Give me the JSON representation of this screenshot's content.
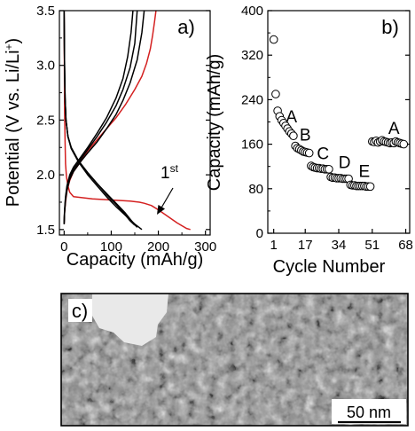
{
  "chart_data": [
    {
      "panel": "a)",
      "type": "line",
      "xlabel": "Capacity (mAh/g)",
      "ylabel": "Potential (V vs. Li/Li+)",
      "ylabel_parts": [
        "Potential (V vs. Li/Li",
        "+",
        ")"
      ],
      "xlim": [
        -10,
        310
      ],
      "ylim": [
        1.45,
        3.5
      ],
      "x_ticks": [
        "0",
        "100",
        "200",
        "300"
      ],
      "y_ticks": [
        "1.5",
        "2.0",
        "2.5",
        "3.0",
        "3.5"
      ],
      "annotation": {
        "main": "1",
        "sup": "st"
      },
      "colors": {
        "first_cycle": "#d42020",
        "other_cycles": "#000000"
      },
      "series": [
        {
          "color": "#d42020",
          "x": [
            0,
            0.5,
            1,
            2,
            3,
            5,
            8,
            12,
            20,
            40,
            60,
            80,
            100,
            120,
            140,
            160,
            170,
            185,
            200,
            220,
            240,
            260,
            268
          ],
          "y": [
            3.5,
            3.0,
            2.6,
            2.3,
            2.1,
            1.98,
            1.9,
            1.84,
            1.8,
            1.79,
            1.78,
            1.775,
            1.77,
            1.765,
            1.76,
            1.75,
            1.74,
            1.72,
            1.68,
            1.62,
            1.56,
            1.51,
            1.5
          ]
        },
        {
          "color": "#d42020",
          "x": [
            0,
            1,
            3,
            6,
            12,
            20,
            35,
            50,
            70,
            90,
            110,
            130,
            150,
            165,
            175,
            183,
            188,
            192,
            195
          ],
          "y": [
            1.55,
            1.65,
            1.75,
            1.85,
            1.95,
            2.03,
            2.12,
            2.22,
            2.32,
            2.42,
            2.52,
            2.64,
            2.78,
            2.9,
            3.02,
            3.15,
            3.28,
            3.4,
            3.5
          ]
        },
        {
          "color": "#000000",
          "x": [
            0,
            1,
            2,
            4,
            8,
            15,
            30,
            50,
            70,
            90,
            110,
            130,
            145,
            155
          ],
          "y": [
            3.5,
            3.0,
            2.7,
            2.5,
            2.35,
            2.25,
            2.13,
            2.02,
            1.92,
            1.83,
            1.74,
            1.65,
            1.57,
            1.52
          ]
        },
        {
          "color": "#000000",
          "x": [
            0,
            1,
            2,
            4,
            8,
            15,
            30,
            50,
            70,
            90,
            110,
            130,
            150,
            165
          ],
          "y": [
            3.5,
            3.0,
            2.7,
            2.5,
            2.35,
            2.24,
            2.12,
            2.0,
            1.9,
            1.8,
            1.71,
            1.63,
            1.55,
            1.5
          ]
        },
        {
          "color": "#000000",
          "x": [
            0,
            1,
            2,
            4,
            8,
            15,
            30,
            50,
            70,
            90,
            110,
            125,
            140,
            150
          ],
          "y": [
            3.5,
            3.0,
            2.7,
            2.5,
            2.35,
            2.25,
            2.13,
            2.02,
            1.92,
            1.82,
            1.73,
            1.66,
            1.58,
            1.54
          ]
        },
        {
          "color": "#000000",
          "x": [
            0,
            1,
            3,
            6,
            12,
            20,
            35,
            50,
            70,
            90,
            110,
            125,
            135,
            142,
            146
          ],
          "y": [
            1.55,
            1.68,
            1.8,
            1.9,
            2.0,
            2.07,
            2.16,
            2.25,
            2.38,
            2.52,
            2.7,
            2.88,
            3.08,
            3.3,
            3.5
          ]
        },
        {
          "color": "#000000",
          "x": [
            0,
            1,
            3,
            6,
            12,
            20,
            35,
            50,
            70,
            90,
            110,
            125,
            140,
            150,
            155
          ],
          "y": [
            1.55,
            1.66,
            1.78,
            1.88,
            1.98,
            2.05,
            2.14,
            2.23,
            2.35,
            2.48,
            2.63,
            2.78,
            2.98,
            3.2,
            3.5
          ]
        },
        {
          "color": "#000000",
          "x": [
            0,
            1,
            3,
            6,
            12,
            20,
            35,
            50,
            70,
            90,
            110,
            125,
            140,
            155,
            165,
            170
          ],
          "y": [
            1.55,
            1.65,
            1.77,
            1.86,
            1.96,
            2.03,
            2.12,
            2.2,
            2.3,
            2.42,
            2.55,
            2.68,
            2.84,
            3.05,
            3.3,
            3.5
          ]
        }
      ]
    },
    {
      "panel": "b)",
      "type": "scatter",
      "xlabel": "Cycle Number",
      "ylabel": "Capacity (mAh/g)",
      "xlim": [
        -2,
        70
      ],
      "ylim": [
        0,
        400
      ],
      "x_ticks": [
        1,
        17,
        34,
        51,
        68
      ],
      "y_ticks": [
        0,
        80,
        160,
        240,
        320,
        400
      ],
      "x": [
        1,
        2,
        3,
        4,
        5,
        6,
        7,
        8,
        9,
        10,
        11,
        12,
        13,
        14,
        15,
        16,
        17,
        18,
        19,
        20,
        21,
        22,
        23,
        24,
        25,
        26,
        27,
        28,
        29,
        30,
        31,
        32,
        33,
        34,
        35,
        36,
        37,
        38,
        39,
        40,
        41,
        42,
        43,
        44,
        45,
        46,
        47,
        48,
        49,
        50,
        51,
        52,
        53,
        54,
        55,
        56,
        57,
        58,
        59,
        60,
        61,
        62,
        63,
        64,
        65,
        66,
        67
      ],
      "values": [
        348,
        250,
        220,
        210,
        203,
        198,
        193,
        188,
        183,
        179,
        175,
        157,
        153,
        151,
        149,
        147,
        146,
        145,
        144,
        121,
        119,
        118,
        117,
        117,
        116,
        116,
        115,
        115,
        115,
        101,
        100,
        100,
        99,
        99,
        99,
        98,
        98,
        98,
        98,
        87,
        86,
        86,
        85,
        85,
        85,
        85,
        85,
        84,
        84,
        84,
        165,
        164,
        166,
        163,
        165,
        167,
        165,
        164,
        163,
        162,
        163,
        162,
        165,
        163,
        162,
        161,
        160
      ],
      "labels": [
        {
          "text": "A",
          "x": 10,
          "y": 210
        },
        {
          "text": "B",
          "x": 17,
          "y": 178
        },
        {
          "text": "C",
          "x": 26,
          "y": 144
        },
        {
          "text": "D",
          "x": 37,
          "y": 128
        },
        {
          "text": "E",
          "x": 47,
          "y": 112
        },
        {
          "text": "A",
          "x": 62,
          "y": 190
        }
      ]
    }
  ],
  "micrograph": {
    "panel": "c)",
    "scale_bar": "50 nm"
  }
}
